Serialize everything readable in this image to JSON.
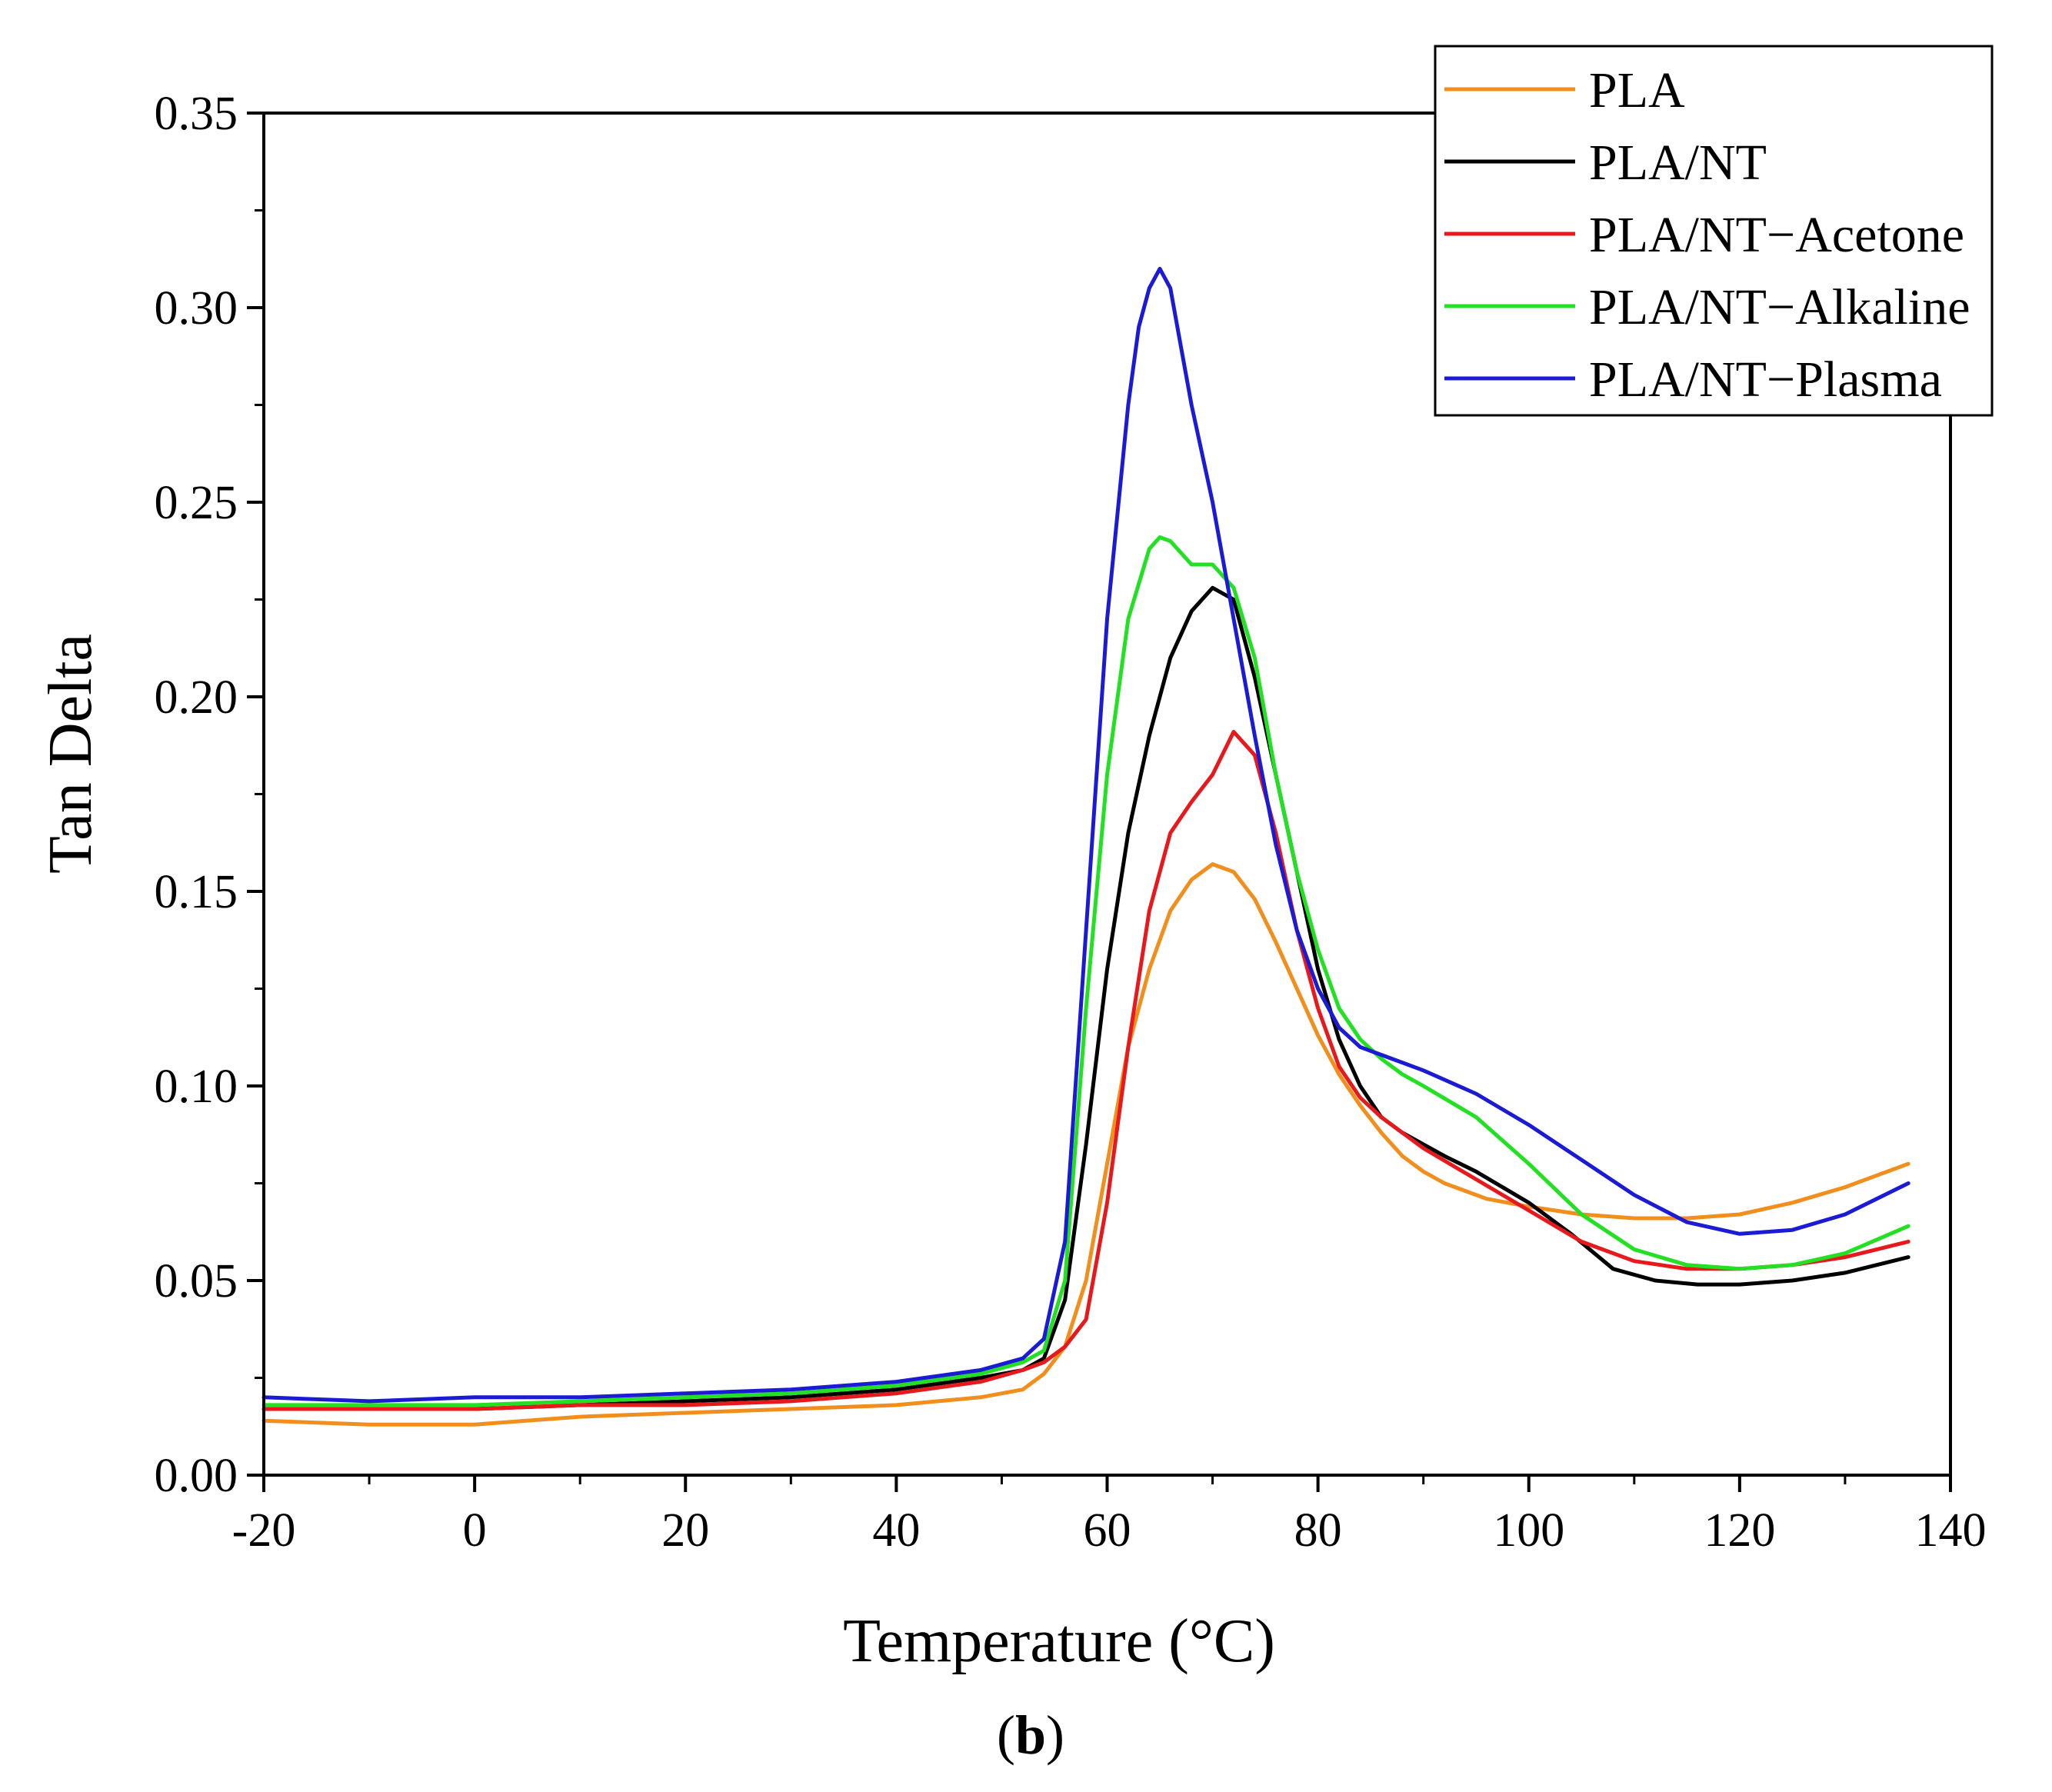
{
  "chart_data": {
    "type": "line",
    "title": "",
    "xlabel": "Temperature (°C)",
    "ylabel": "Tan Delta",
    "panel_label_parts": [
      "(",
      "b",
      ")"
    ],
    "xlim": [
      -20,
      140
    ],
    "ylim": [
      0,
      0.35
    ],
    "x_ticks": [
      -20,
      0,
      20,
      40,
      60,
      80,
      100,
      120,
      140
    ],
    "x_tick_labels": [
      "-20",
      "0",
      "20",
      "40",
      "60",
      "80",
      "100",
      "120",
      "140"
    ],
    "y_ticks": [
      0,
      0.05,
      0.1,
      0.15,
      0.2,
      0.25,
      0.3,
      0.35
    ],
    "y_tick_labels": [
      "0.00",
      "0.05",
      "0.10",
      "0.15",
      "0.20",
      "0.25",
      "0.30",
      "0.35"
    ],
    "legend_position": "top-right",
    "grid": false,
    "series": [
      {
        "name": "PLA",
        "color": "#f28e1c",
        "x": [
          -20,
          -10,
          0,
          10,
          20,
          30,
          40,
          48,
          52,
          54,
          56,
          58,
          60,
          62,
          64,
          66,
          68,
          70,
          72,
          74,
          76,
          78,
          80,
          82,
          84,
          86,
          88,
          90,
          92,
          94,
          96,
          100,
          105,
          110,
          115,
          120,
          125,
          130,
          136
        ],
        "values": [
          0.014,
          0.013,
          0.013,
          0.015,
          0.016,
          0.017,
          0.018,
          0.02,
          0.022,
          0.026,
          0.033,
          0.05,
          0.08,
          0.11,
          0.13,
          0.145,
          0.153,
          0.157,
          0.155,
          0.148,
          0.137,
          0.125,
          0.113,
          0.103,
          0.095,
          0.088,
          0.082,
          0.078,
          0.075,
          0.073,
          0.071,
          0.069,
          0.067,
          0.066,
          0.066,
          0.067,
          0.07,
          0.074,
          0.08
        ]
      },
      {
        "name": "PLA/NT",
        "color": "#000000",
        "x": [
          -20,
          -10,
          0,
          10,
          20,
          30,
          40,
          48,
          52,
          54,
          56,
          58,
          60,
          62,
          64,
          66,
          68,
          70,
          72,
          74,
          76,
          78,
          80,
          82,
          84,
          86,
          88,
          90,
          92,
          95,
          100,
          104,
          108,
          112,
          116,
          120,
          125,
          130,
          136
        ],
        "values": [
          0.017,
          0.017,
          0.017,
          0.018,
          0.019,
          0.02,
          0.022,
          0.025,
          0.027,
          0.03,
          0.045,
          0.085,
          0.13,
          0.165,
          0.19,
          0.21,
          0.222,
          0.228,
          0.225,
          0.205,
          0.18,
          0.155,
          0.13,
          0.112,
          0.1,
          0.092,
          0.088,
          0.085,
          0.082,
          0.078,
          0.07,
          0.062,
          0.053,
          0.05,
          0.049,
          0.049,
          0.05,
          0.052,
          0.056
        ]
      },
      {
        "name": "PLA/NT−Acetone",
        "color": "#e8191c",
        "x": [
          -20,
          -10,
          0,
          10,
          20,
          30,
          40,
          48,
          52,
          54,
          56,
          58,
          60,
          62,
          64,
          66,
          68,
          70,
          72,
          74,
          76,
          78,
          80,
          82,
          84,
          86,
          88,
          90,
          95,
          100,
          105,
          110,
          115,
          120,
          125,
          130,
          136
        ],
        "values": [
          0.017,
          0.017,
          0.017,
          0.018,
          0.018,
          0.019,
          0.021,
          0.024,
          0.027,
          0.029,
          0.033,
          0.04,
          0.07,
          0.11,
          0.145,
          0.165,
          0.173,
          0.18,
          0.191,
          0.185,
          0.165,
          0.14,
          0.12,
          0.105,
          0.097,
          0.092,
          0.088,
          0.084,
          0.076,
          0.068,
          0.06,
          0.055,
          0.053,
          0.053,
          0.054,
          0.056,
          0.06
        ]
      },
      {
        "name": "PLA/NT−Alkaline",
        "color": "#22e022",
        "x": [
          -20,
          -10,
          0,
          10,
          20,
          30,
          40,
          48,
          52,
          54,
          56,
          58,
          60,
          62,
          64,
          65,
          66,
          68,
          70,
          72,
          74,
          76,
          78,
          80,
          82,
          84,
          86,
          88,
          90,
          95,
          100,
          105,
          110,
          115,
          120,
          125,
          130,
          136
        ],
        "values": [
          0.018,
          0.018,
          0.018,
          0.019,
          0.02,
          0.021,
          0.023,
          0.026,
          0.029,
          0.032,
          0.05,
          0.12,
          0.18,
          0.22,
          0.238,
          0.241,
          0.24,
          0.234,
          0.234,
          0.228,
          0.21,
          0.18,
          0.155,
          0.135,
          0.12,
          0.112,
          0.107,
          0.103,
          0.1,
          0.092,
          0.08,
          0.067,
          0.058,
          0.054,
          0.053,
          0.054,
          0.057,
          0.064
        ]
      },
      {
        "name": "PLA/NT−Plasma",
        "color": "#1b1bd6",
        "x": [
          -20,
          -10,
          0,
          10,
          20,
          30,
          40,
          48,
          52,
          54,
          56,
          58,
          60,
          62,
          63,
          64,
          65,
          66,
          67,
          68,
          70,
          72,
          74,
          76,
          78,
          80,
          82,
          84,
          86,
          88,
          90,
          95,
          100,
          105,
          110,
          115,
          120,
          125,
          130,
          136
        ],
        "values": [
          0.02,
          0.019,
          0.02,
          0.02,
          0.021,
          0.022,
          0.024,
          0.027,
          0.03,
          0.035,
          0.06,
          0.14,
          0.22,
          0.275,
          0.295,
          0.305,
          0.31,
          0.305,
          0.29,
          0.275,
          0.25,
          0.22,
          0.19,
          0.162,
          0.14,
          0.125,
          0.115,
          0.11,
          0.108,
          0.106,
          0.104,
          0.098,
          0.09,
          0.081,
          0.072,
          0.065,
          0.062,
          0.063,
          0.067,
          0.075
        ]
      }
    ]
  }
}
